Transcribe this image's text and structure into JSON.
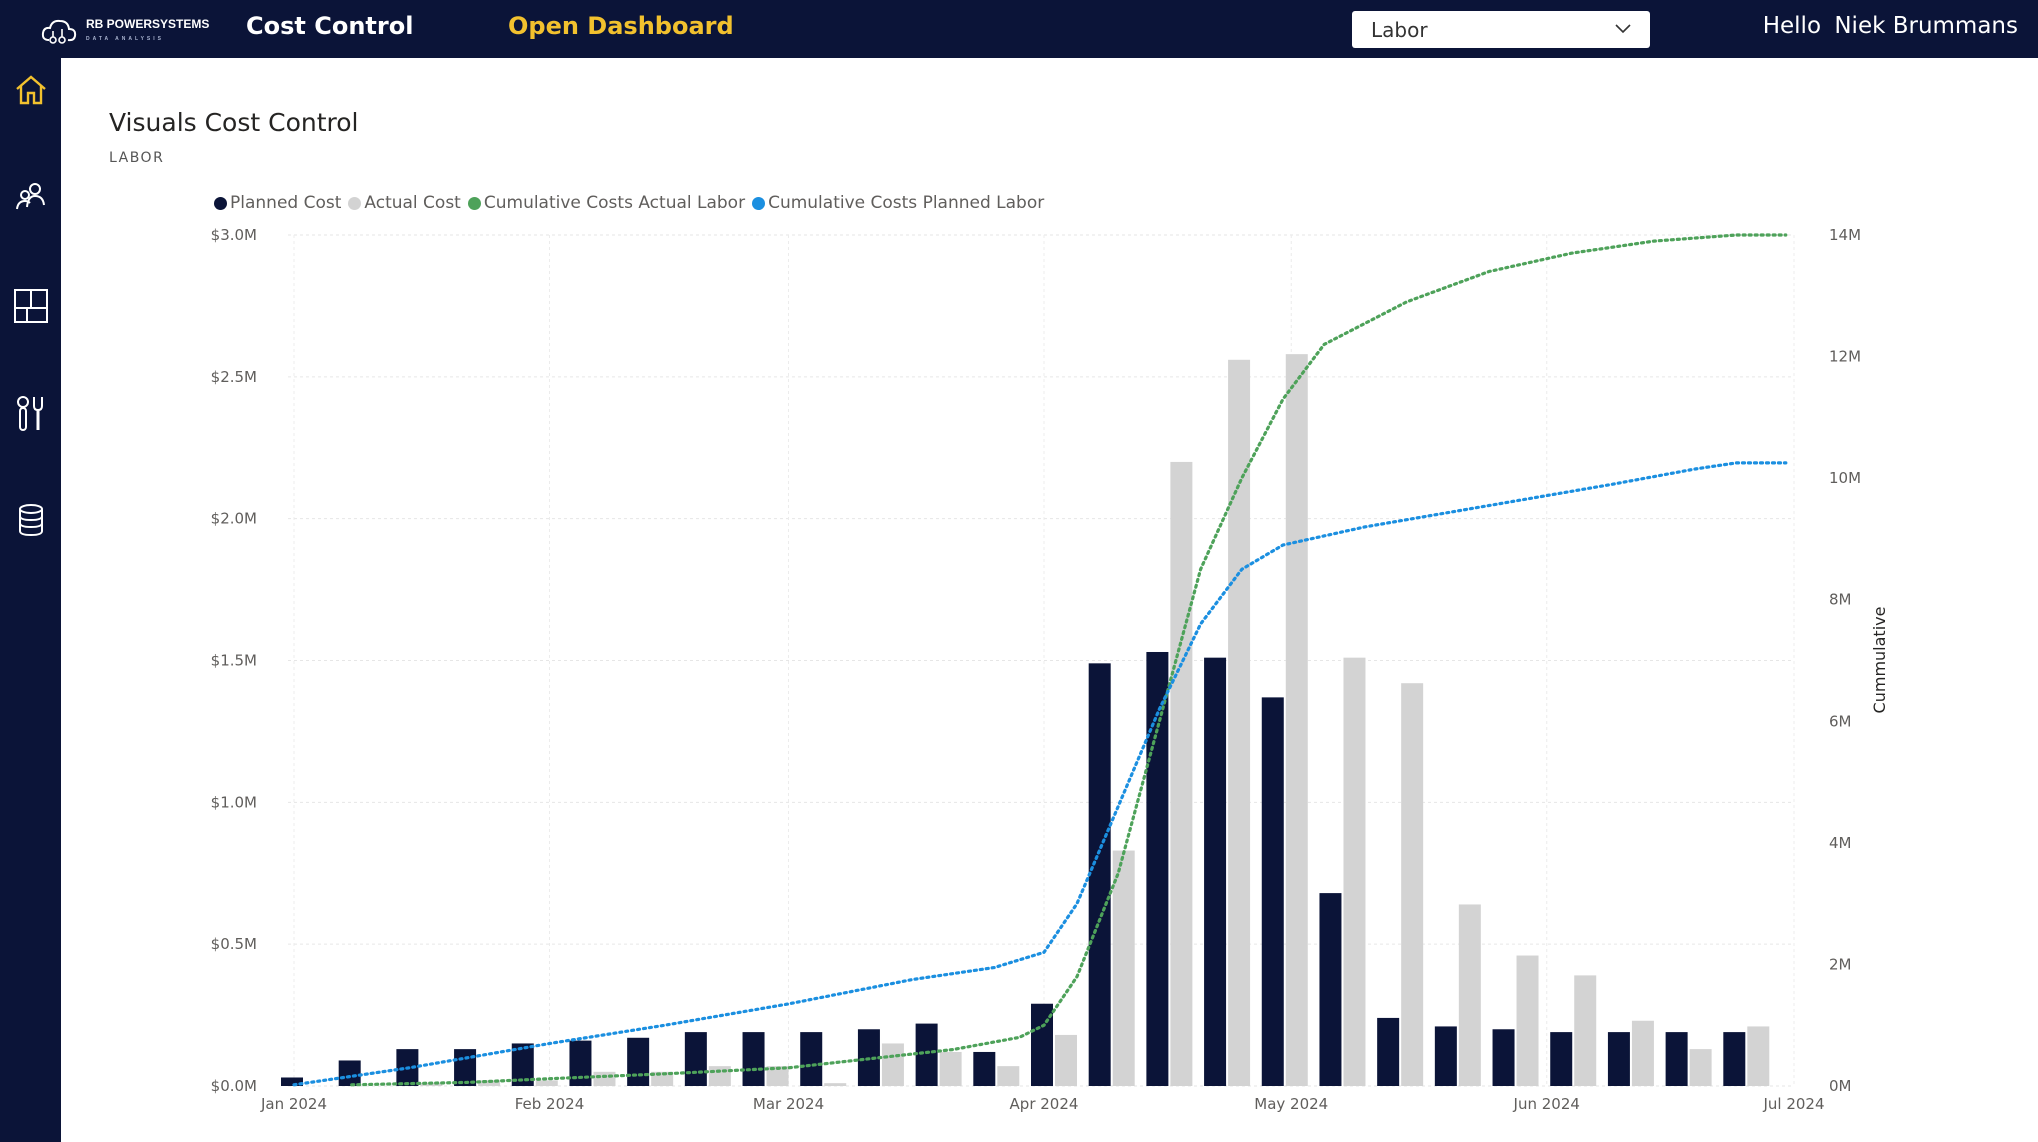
{
  "header": {
    "logo_text": "RB POWERSYSTEMS",
    "logo_sub": "DATA ANALYSIS",
    "title": "Cost Control",
    "dashboard_link": "Open Dashboard",
    "selector_value": "Labor",
    "greeting": "Hello",
    "user_name": "Niek Brummans"
  },
  "sidebar": {
    "items": [
      {
        "icon": "home-icon",
        "active": true
      },
      {
        "icon": "users-icon",
        "active": false
      },
      {
        "icon": "layout-icon",
        "active": false
      },
      {
        "icon": "tools-icon",
        "active": false
      },
      {
        "icon": "database-icon",
        "active": false
      }
    ]
  },
  "colors": {
    "navy": "#0b1438",
    "accent": "#f2c12e",
    "planned": "#0b1438",
    "actual": "#d3d3d3",
    "cum_actual": "#4ea25a",
    "cum_planned": "#1b8fe0"
  },
  "chart_data": {
    "type": "bar",
    "title": "Visuals Cost Control",
    "subtitle": "LABOR",
    "y2label": "Cummulative",
    "legend": [
      "Planned Cost",
      "Actual Cost",
      "Cumulative Costs Actual Labor",
      "Cumulative Costs Planned Labor"
    ],
    "legend_position": "top-left",
    "ylim": [
      0,
      3.0
    ],
    "y_ticks": [
      "$0.0M",
      "$0.5M",
      "$1.0M",
      "$1.5M",
      "$2.0M",
      "$2.5M",
      "$3.0M"
    ],
    "y2lim": [
      0,
      14
    ],
    "y2_ticks": [
      "0M",
      "2M",
      "4M",
      "6M",
      "8M",
      "10M",
      "12M",
      "14M"
    ],
    "x_ticks": [
      "Jan 2024",
      "Feb 2024",
      "Mar 2024",
      "Apr 2024",
      "May 2024",
      "Jun 2024",
      "Jul 2024"
    ],
    "xlim_days": [
      0,
      182
    ],
    "x_tick_days": [
      0,
      31,
      60,
      91,
      121,
      152,
      182
    ],
    "grid": true,
    "weeks": [
      "2024-01-01",
      "2024-01-08",
      "2024-01-15",
      "2024-01-22",
      "2024-01-29",
      "2024-02-05",
      "2024-02-12",
      "2024-02-19",
      "2024-02-26",
      "2024-03-04",
      "2024-03-11",
      "2024-03-18",
      "2024-03-25",
      "2024-04-01",
      "2024-04-08",
      "2024-04-15",
      "2024-04-22",
      "2024-04-29",
      "2024-05-06",
      "2024-05-13",
      "2024-05-20",
      "2024-05-27",
      "2024-06-03",
      "2024-06-10",
      "2024-06-17",
      "2024-06-24"
    ],
    "series": [
      {
        "name": "Planned Cost",
        "kind": "bar",
        "values": [
          0.03,
          0.09,
          0.13,
          0.13,
          0.15,
          0.16,
          0.17,
          0.19,
          0.19,
          0.19,
          0.2,
          0.22,
          0.12,
          0.29,
          1.49,
          1.53,
          1.51,
          1.37,
          0.68,
          0.24,
          0.21,
          0.2,
          0.19,
          0.19,
          0.19,
          0.19
        ]
      },
      {
        "name": "Actual Cost",
        "kind": "bar",
        "values": [
          0,
          0,
          0.01,
          0.02,
          0.02,
          0.05,
          0.05,
          0.07,
          0.07,
          0.01,
          0.15,
          0.12,
          0.07,
          0.18,
          0.83,
          2.2,
          2.56,
          2.58,
          1.51,
          1.42,
          0.64,
          0.46,
          0.39,
          0.23,
          0.13,
          0.21
        ]
      },
      {
        "name": "Cumulative Costs Actual Labor",
        "kind": "line",
        "axis": "right",
        "points": [
          [
            7,
            0.02
          ],
          [
            14,
            0.04
          ],
          [
            21,
            0.06
          ],
          [
            31,
            0.12
          ],
          [
            45,
            0.2
          ],
          [
            60,
            0.3
          ],
          [
            70,
            0.45
          ],
          [
            80,
            0.6
          ],
          [
            88,
            0.8
          ],
          [
            91,
            1.0
          ],
          [
            95,
            1.8
          ],
          [
            100,
            3.5
          ],
          [
            105,
            6.0
          ],
          [
            110,
            8.5
          ],
          [
            115,
            10.0
          ],
          [
            120,
            11.3
          ],
          [
            125,
            12.2
          ],
          [
            135,
            12.9
          ],
          [
            145,
            13.4
          ],
          [
            155,
            13.7
          ],
          [
            165,
            13.9
          ],
          [
            175,
            14.0
          ],
          [
            181,
            14.0
          ]
        ]
      },
      {
        "name": "Cumulative Costs Planned Labor",
        "kind": "line",
        "axis": "right",
        "points": [
          [
            0,
            0.02
          ],
          [
            14,
            0.3
          ],
          [
            31,
            0.7
          ],
          [
            45,
            1.0
          ],
          [
            60,
            1.35
          ],
          [
            75,
            1.75
          ],
          [
            85,
            1.95
          ],
          [
            91,
            2.2
          ],
          [
            95,
            3.0
          ],
          [
            100,
            4.6
          ],
          [
            105,
            6.2
          ],
          [
            110,
            7.6
          ],
          [
            115,
            8.5
          ],
          [
            120,
            8.9
          ],
          [
            130,
            9.2
          ],
          [
            145,
            9.55
          ],
          [
            160,
            9.9
          ],
          [
            170,
            10.15
          ],
          [
            175,
            10.25
          ],
          [
            181,
            10.25
          ]
        ]
      }
    ]
  }
}
